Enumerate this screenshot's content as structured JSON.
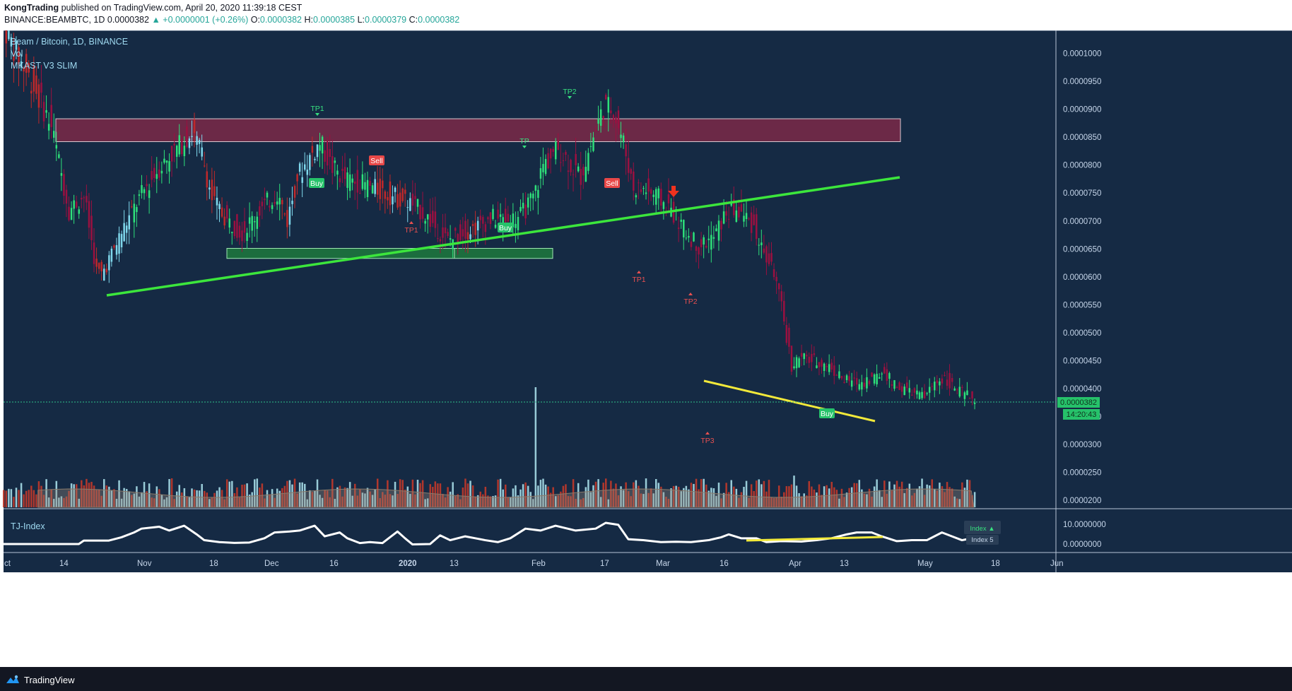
{
  "header": {
    "author": "KongTrading",
    "published": "published on TradingView.com, April 20, 2020 11:39:18 CEST",
    "symbol": "BINANCE:BEAMBTC, 1D",
    "last": "0.0000382",
    "change": "▲ +0.0000001 (+0.26%)",
    "o_label": "O:",
    "o": "0.0000382",
    "h_label": "H:",
    "h": "0.0000385",
    "l_label": "L:",
    "l": "0.0000379",
    "c_label": "C:",
    "c": "0.0000382"
  },
  "legend": {
    "title": "Beam / Bitcoin, 1D, BINANCE",
    "vol": "Vol",
    "indicator": "MKAST V3 SLIM",
    "subpanel": "TJ-Index"
  },
  "footer": {
    "brand": "TradingView"
  },
  "colors": {
    "background": "#152a44",
    "bull": "#2ee07a",
    "bear": "#9b1040",
    "bull_alt": "#7fd8ec",
    "bear_alt": "#c0282a",
    "trend_green": "#3ce63c",
    "trend_yellow": "#f2e93a",
    "resistance_zone": "#8a2a48",
    "support_zone": "#1f8a3c",
    "arrow": "#f0321e",
    "sell_tag": "#e84848",
    "buy_tag": "#26c26a"
  },
  "chart_data": {
    "type": "candlestick",
    "title": "Beam / Bitcoin, 1D, BINANCE",
    "y_axis": {
      "min": 1.9e-05,
      "max": 0.0001045,
      "ticks": [
        "0.0001000",
        "0.0000950",
        "0.0000900",
        "0.0000850",
        "0.0000800",
        "0.0000750",
        "0.0000700",
        "0.0000650",
        "0.0000600",
        "0.0000550",
        "0.0000500",
        "0.0000450",
        "0.0000400",
        "0.0000350",
        "0.0000300",
        "0.0000250",
        "0.0000200"
      ]
    },
    "x_axis": {
      "ticks": [
        "ct",
        "14",
        "Nov",
        "18",
        "Dec",
        "16",
        "2020",
        "13",
        "Feb",
        "17",
        "Mar",
        "16",
        "Apr",
        "13",
        "May",
        "18",
        "Jun"
      ],
      "bold": [
        "2020"
      ]
    },
    "last_price": {
      "value": "0.0000382",
      "countdown": "14:20:43"
    },
    "price_path": [
      [
        0,
        0.000106
      ],
      [
        6,
        0.0001
      ],
      [
        12,
        9.5e-05
      ],
      [
        20,
        8.7e-05
      ],
      [
        27,
        7.2e-05
      ],
      [
        33,
        7.45e-05
      ],
      [
        38,
        6.1e-05
      ],
      [
        40,
        6.05e-05
      ],
      [
        44,
        6.4e-05
      ],
      [
        48,
        6.8e-05
      ],
      [
        55,
        7.4e-05
      ],
      [
        62,
        7.9e-05
      ],
      [
        70,
        8.3e-05
      ],
      [
        76,
        8.6e-05
      ],
      [
        80,
        8.2e-05
      ],
      [
        84,
        7.4e-05
      ],
      [
        90,
        7e-05
      ],
      [
        96,
        6.8e-05
      ],
      [
        103,
        7.2e-05
      ],
      [
        110,
        7.5e-05
      ],
      [
        114,
        7e-05
      ],
      [
        118,
        7.8e-05
      ],
      [
        124,
        8.2e-05
      ],
      [
        127,
        8.4e-05
      ],
      [
        132,
        7.95e-05
      ],
      [
        137,
        7.75e-05
      ],
      [
        145,
        7.65e-05
      ],
      [
        153,
        7.5e-05
      ],
      [
        162,
        7.35e-05
      ],
      [
        168,
        7.15e-05
      ],
      [
        173,
        6.9e-05
      ],
      [
        178,
        6.65e-05
      ],
      [
        184,
        6.8e-05
      ],
      [
        190,
        6.9e-05
      ],
      [
        196,
        7.05e-05
      ],
      [
        202,
        7e-05
      ],
      [
        207,
        7.1e-05
      ],
      [
        212,
        7.4e-05
      ],
      [
        216,
        8e-05
      ],
      [
        222,
        8.3e-05
      ],
      [
        227,
        8e-05
      ],
      [
        231,
        7.8e-05
      ],
      [
        236,
        8.5e-05
      ],
      [
        240,
        9.05e-05
      ],
      [
        244,
        9e-05
      ],
      [
        248,
        8.4e-05
      ],
      [
        252,
        7.6e-05
      ],
      [
        257,
        7.55e-05
      ],
      [
        262,
        7.4e-05
      ],
      [
        267,
        7.2e-05
      ],
      [
        272,
        6.85e-05
      ],
      [
        278,
        6.55e-05
      ],
      [
        284,
        6.7e-05
      ],
      [
        289,
        7.15e-05
      ],
      [
        292,
        7.2e-05
      ],
      [
        296,
        7.1e-05
      ],
      [
        300,
        6.9e-05
      ],
      [
        304,
        6.4e-05
      ],
      [
        308,
        6.1e-05
      ],
      [
        312,
        5.2e-05
      ],
      [
        315,
        4.4e-05
      ],
      [
        318,
        4.55e-05
      ],
      [
        324,
        4.5e-05
      ],
      [
        330,
        4.4e-05
      ],
      [
        336,
        4.15e-05
      ],
      [
        342,
        4.1e-05
      ],
      [
        348,
        4.2e-05
      ],
      [
        352,
        4.3e-05
      ],
      [
        356,
        4.05e-05
      ],
      [
        362,
        3.95e-05
      ],
      [
        368,
        3.85e-05
      ],
      [
        372,
        4.1e-05
      ],
      [
        376,
        4.2e-05
      ],
      [
        380,
        4e-05
      ],
      [
        384,
        3.9e-05
      ],
      [
        387,
        3.82e-05
      ]
    ],
    "candle_spacing_days": 1,
    "resistance_zone": {
      "from": "0.0000883",
      "to": "0.0000842"
    },
    "support_zone": {
      "from": "0.0000651",
      "to": "0.0000633"
    },
    "trendlines": [
      {
        "name": "rising-support",
        "color": "green",
        "from": [
          "Oct 24",
          "0.0000568"
        ],
        "to": [
          "Apr 28",
          "0.0000773"
        ]
      },
      {
        "name": "falling-support",
        "color": "yellow",
        "from": [
          "Mar 13",
          "0.0000421"
        ],
        "to": [
          "Apr 26",
          "0.0000348"
        ]
      }
    ],
    "annotations": [
      {
        "label": "TP1",
        "kind": "tp-up",
        "x": 116,
        "price": 8.8e-05
      },
      {
        "label": "TP2",
        "kind": "tp-up",
        "x": 238,
        "price": 9.12e-05
      },
      {
        "label": "TP",
        "kind": "tp-up",
        "x": 212,
        "price": 8.37e-05
      },
      {
        "label": "Sell",
        "kind": "sell",
        "x": 137,
        "price": 8.07e-05
      },
      {
        "label": "Sell",
        "kind": "sell",
        "x": 259,
        "price": 7.63e-05
      },
      {
        "label": "Buy",
        "kind": "buy",
        "x": 117,
        "price": 7.63e-05
      },
      {
        "label": "Buy",
        "kind": "buy",
        "x": 199,
        "price": 6.96e-05
      },
      {
        "label": "Buy",
        "kind": "buy",
        "x": 377,
        "price": 3.58e-05
      },
      {
        "label": "TP1",
        "kind": "tp-down",
        "x": 152,
        "price": 6.9e-05
      },
      {
        "label": "TP1",
        "kind": "tp-down",
        "x": 273,
        "price": 6.1e-05
      },
      {
        "label": "TP2",
        "kind": "tp-down",
        "x": 296,
        "price": 5.7e-05
      },
      {
        "label": "TP3",
        "kind": "tp-down",
        "x": 315,
        "price": 3.3e-05
      }
    ],
    "signal_arrow": {
      "x": 285,
      "price": 7.45e-05
    },
    "volume_spikes": [
      {
        "x": 212,
        "value": 1.0
      },
      {
        "x": 315,
        "value": 0.48
      },
      {
        "x": 374,
        "value": 0.32
      },
      {
        "x": 29,
        "value": 0.35
      },
      {
        "x": 244,
        "value": 0.36
      }
    ],
    "tj_index": {
      "name": "TJ-Index",
      "y_ticks": [
        "10.0000000",
        "0.0000000"
      ],
      "values": [
        [
          0,
          0
        ],
        [
          30,
          0
        ],
        [
          32,
          1.8
        ],
        [
          42,
          1.8
        ],
        [
          47,
          3.5
        ],
        [
          52,
          6
        ],
        [
          55,
          8
        ],
        [
          62,
          9
        ],
        [
          66,
          7
        ],
        [
          72,
          9.5
        ],
        [
          77,
          5
        ],
        [
          80,
          2
        ],
        [
          86,
          1
        ],
        [
          92,
          0.6
        ],
        [
          98,
          0.8
        ],
        [
          104,
          3
        ],
        [
          108,
          6
        ],
        [
          114,
          6.5
        ],
        [
          118,
          7
        ],
        [
          124,
          9.5
        ],
        [
          128,
          4
        ],
        [
          134,
          6
        ],
        [
          137,
          3
        ],
        [
          142,
          0.5
        ],
        [
          146,
          1
        ],
        [
          151,
          0.5
        ],
        [
          157,
          6.5
        ],
        [
          160,
          3
        ],
        [
          163,
          -0.2
        ],
        [
          170,
          0
        ],
        [
          174,
          4.5
        ],
        [
          178,
          2
        ],
        [
          184,
          4
        ],
        [
          188,
          3
        ],
        [
          192,
          2
        ],
        [
          197,
          1
        ],
        [
          202,
          3
        ],
        [
          208,
          8
        ],
        [
          214,
          7
        ],
        [
          220,
          9.5
        ],
        [
          228,
          7
        ],
        [
          236,
          8
        ],
        [
          240,
          11
        ],
        [
          245,
          10
        ],
        [
          249,
          2.5
        ],
        [
          255,
          2
        ],
        [
          262,
          1
        ],
        [
          268,
          1.2
        ],
        [
          274,
          1
        ],
        [
          281,
          2
        ],
        [
          286,
          3.5
        ],
        [
          289,
          5
        ],
        [
          294,
          3
        ],
        [
          300,
          3
        ],
        [
          304,
          1
        ],
        [
          310,
          1.5
        ],
        [
          318,
          1.3
        ],
        [
          324,
          2
        ],
        [
          330,
          3
        ],
        [
          336,
          5
        ],
        [
          340,
          6
        ],
        [
          346,
          6
        ],
        [
          350,
          4
        ],
        [
          356,
          1.5
        ],
        [
          362,
          2
        ],
        [
          368,
          2
        ],
        [
          374,
          6
        ],
        [
          378,
          4
        ],
        [
          382,
          2
        ],
        [
          386,
          3
        ],
        [
          390,
          3.2
        ]
      ],
      "trendline": {
        "from": [
          324,
          1.0
        ],
        "to": [
          398,
          1.4
        ]
      },
      "labels": [
        "Index ▲",
        "Index 5"
      ]
    }
  }
}
